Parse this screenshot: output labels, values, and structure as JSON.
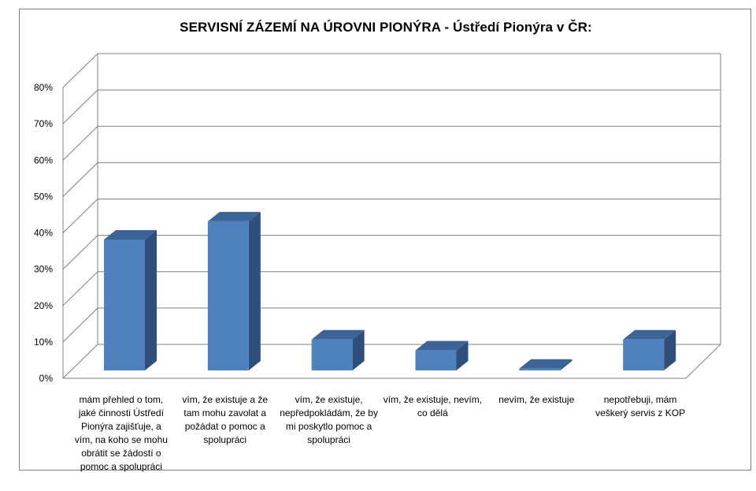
{
  "chart_data": {
    "type": "bar",
    "title": "SERVISNÍ ZÁZEMÍ NA ÚROVNI PIONÝRA - Ústředí Pionýra v ČR:",
    "categories": [
      "mám přehled o tom, jaké činnosti Ústředí Pionýra zajišťuje, a vím, na koho se mohu obrátit se žádostí o pomoc a spolupráci",
      "vím, že existuje a že tam mohu zavolat a požádat o pomoc a spolupráci",
      "vím, že existuje, nepředpokládám, že by mi poskytlo pomoc a spolupráci",
      "vím, že existuje, nevím, co dělá",
      "nevím, že existuje",
      "nepotřebuji, mám veškerý servis z KOP"
    ],
    "values": [
      36,
      41,
      8.5,
      5.5,
      0.5,
      8.5
    ],
    "unit": "%",
    "ylim": [
      0,
      80
    ],
    "yticks": [
      "0%",
      "10%",
      "20%",
      "30%",
      "40%",
      "50%",
      "60%",
      "70%",
      "80%"
    ],
    "grid": true,
    "legend": "none",
    "colors": {
      "bar_front": "#4f81bd",
      "bar_side": "#2f4f7a",
      "bar_top": "#3c6496",
      "grid": "#808080"
    }
  }
}
